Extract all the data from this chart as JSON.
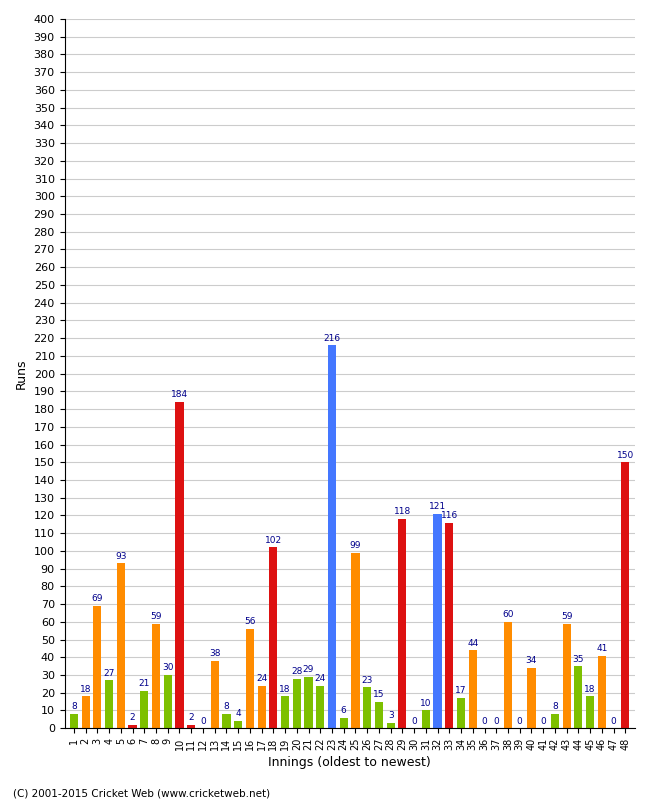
{
  "xlabel": "Innings (oldest to newest)",
  "ylabel": "Runs",
  "footer": "(C) 2001-2015 Cricket Web (www.cricketweb.net)",
  "ylim": [
    0,
    400
  ],
  "innings": [
    1,
    2,
    3,
    4,
    5,
    6,
    7,
    8,
    9,
    10,
    11,
    12,
    13,
    14,
    15,
    16,
    17,
    18,
    19,
    20,
    21,
    22,
    23,
    24,
    25,
    26,
    27,
    28,
    29,
    30,
    31,
    32,
    33,
    34,
    35,
    36,
    37,
    38,
    39,
    40,
    41,
    42,
    43,
    44,
    45,
    46,
    47,
    48
  ],
  "values": [
    8,
    18,
    69,
    27,
    93,
    2,
    21,
    59,
    30,
    184,
    2,
    0,
    38,
    8,
    4,
    56,
    24,
    102,
    18,
    28,
    29,
    24,
    216,
    6,
    99,
    23,
    15,
    3,
    118,
    0,
    10,
    121,
    116,
    17,
    44,
    0,
    0,
    60,
    0,
    34,
    0,
    8,
    59,
    35,
    18,
    41,
    0,
    150
  ],
  "colors": [
    "green",
    "orange",
    "orange",
    "green",
    "orange",
    "red",
    "green",
    "orange",
    "green",
    "red",
    "red",
    "green",
    "orange",
    "green",
    "green",
    "orange",
    "orange",
    "red",
    "green",
    "green",
    "green",
    "green",
    "blue",
    "green",
    "orange",
    "green",
    "green",
    "green",
    "red",
    "green",
    "green",
    "blue",
    "red",
    "green",
    "orange",
    "green",
    "green",
    "orange",
    "green",
    "orange",
    "green",
    "green",
    "orange",
    "green",
    "green",
    "orange",
    "green",
    "red"
  ],
  "color_map": {
    "green": "#7dc000",
    "orange": "#ff8c00",
    "red": "#dd1111",
    "blue": "#4477ff"
  },
  "background_color": "#ffffff",
  "grid_color": "#cccccc",
  "bar_width": 0.7,
  "label_fontsize": 6.5,
  "label_color": "#00008b"
}
